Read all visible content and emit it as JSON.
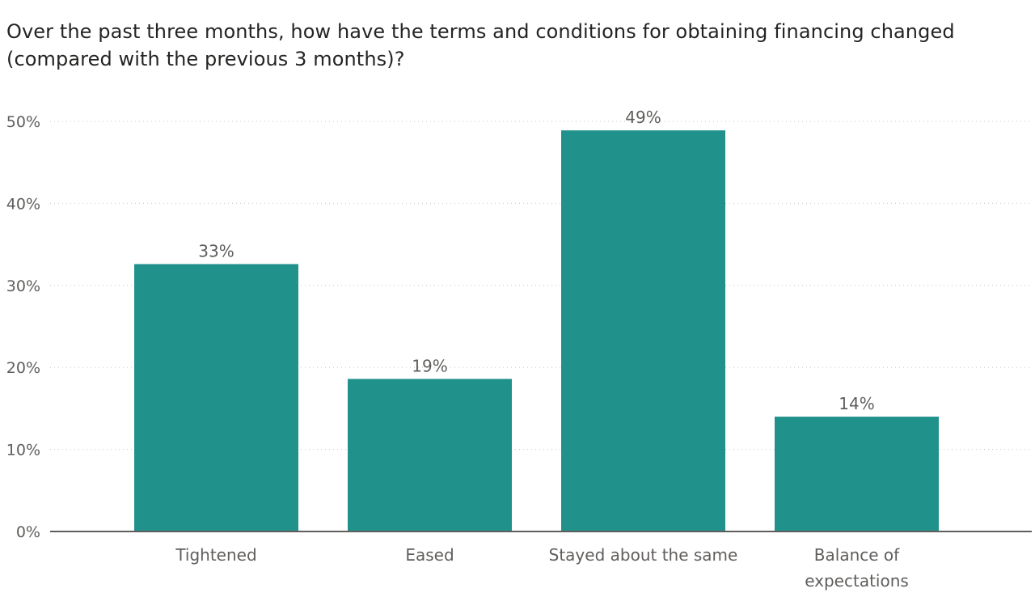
{
  "chart_data": {
    "type": "bar",
    "title": "Over the past three months, how have the terms and conditions for obtaining financing changed (compared with the previous 3 months)?",
    "categories": [
      "Tightened",
      "Eased",
      "Stayed about the same",
      "Balance of expectations"
    ],
    "category_lines": [
      [
        "Tightened"
      ],
      [
        "Eased"
      ],
      [
        "Stayed about the same"
      ],
      [
        "Balance of",
        "expectations"
      ]
    ],
    "values": [
      32.6,
      18.6,
      48.9,
      14.0
    ],
    "data_labels": [
      "33%",
      "19%",
      "49%",
      "14%"
    ],
    "yticks": [
      0,
      10,
      20,
      30,
      40,
      50
    ],
    "ytick_labels": [
      "0%",
      "10%",
      "20%",
      "30%",
      "40%",
      "50%"
    ],
    "ylim": [
      0,
      50
    ],
    "xlabel": "",
    "ylabel": "",
    "grid": true,
    "bar_color": "#21918c"
  }
}
